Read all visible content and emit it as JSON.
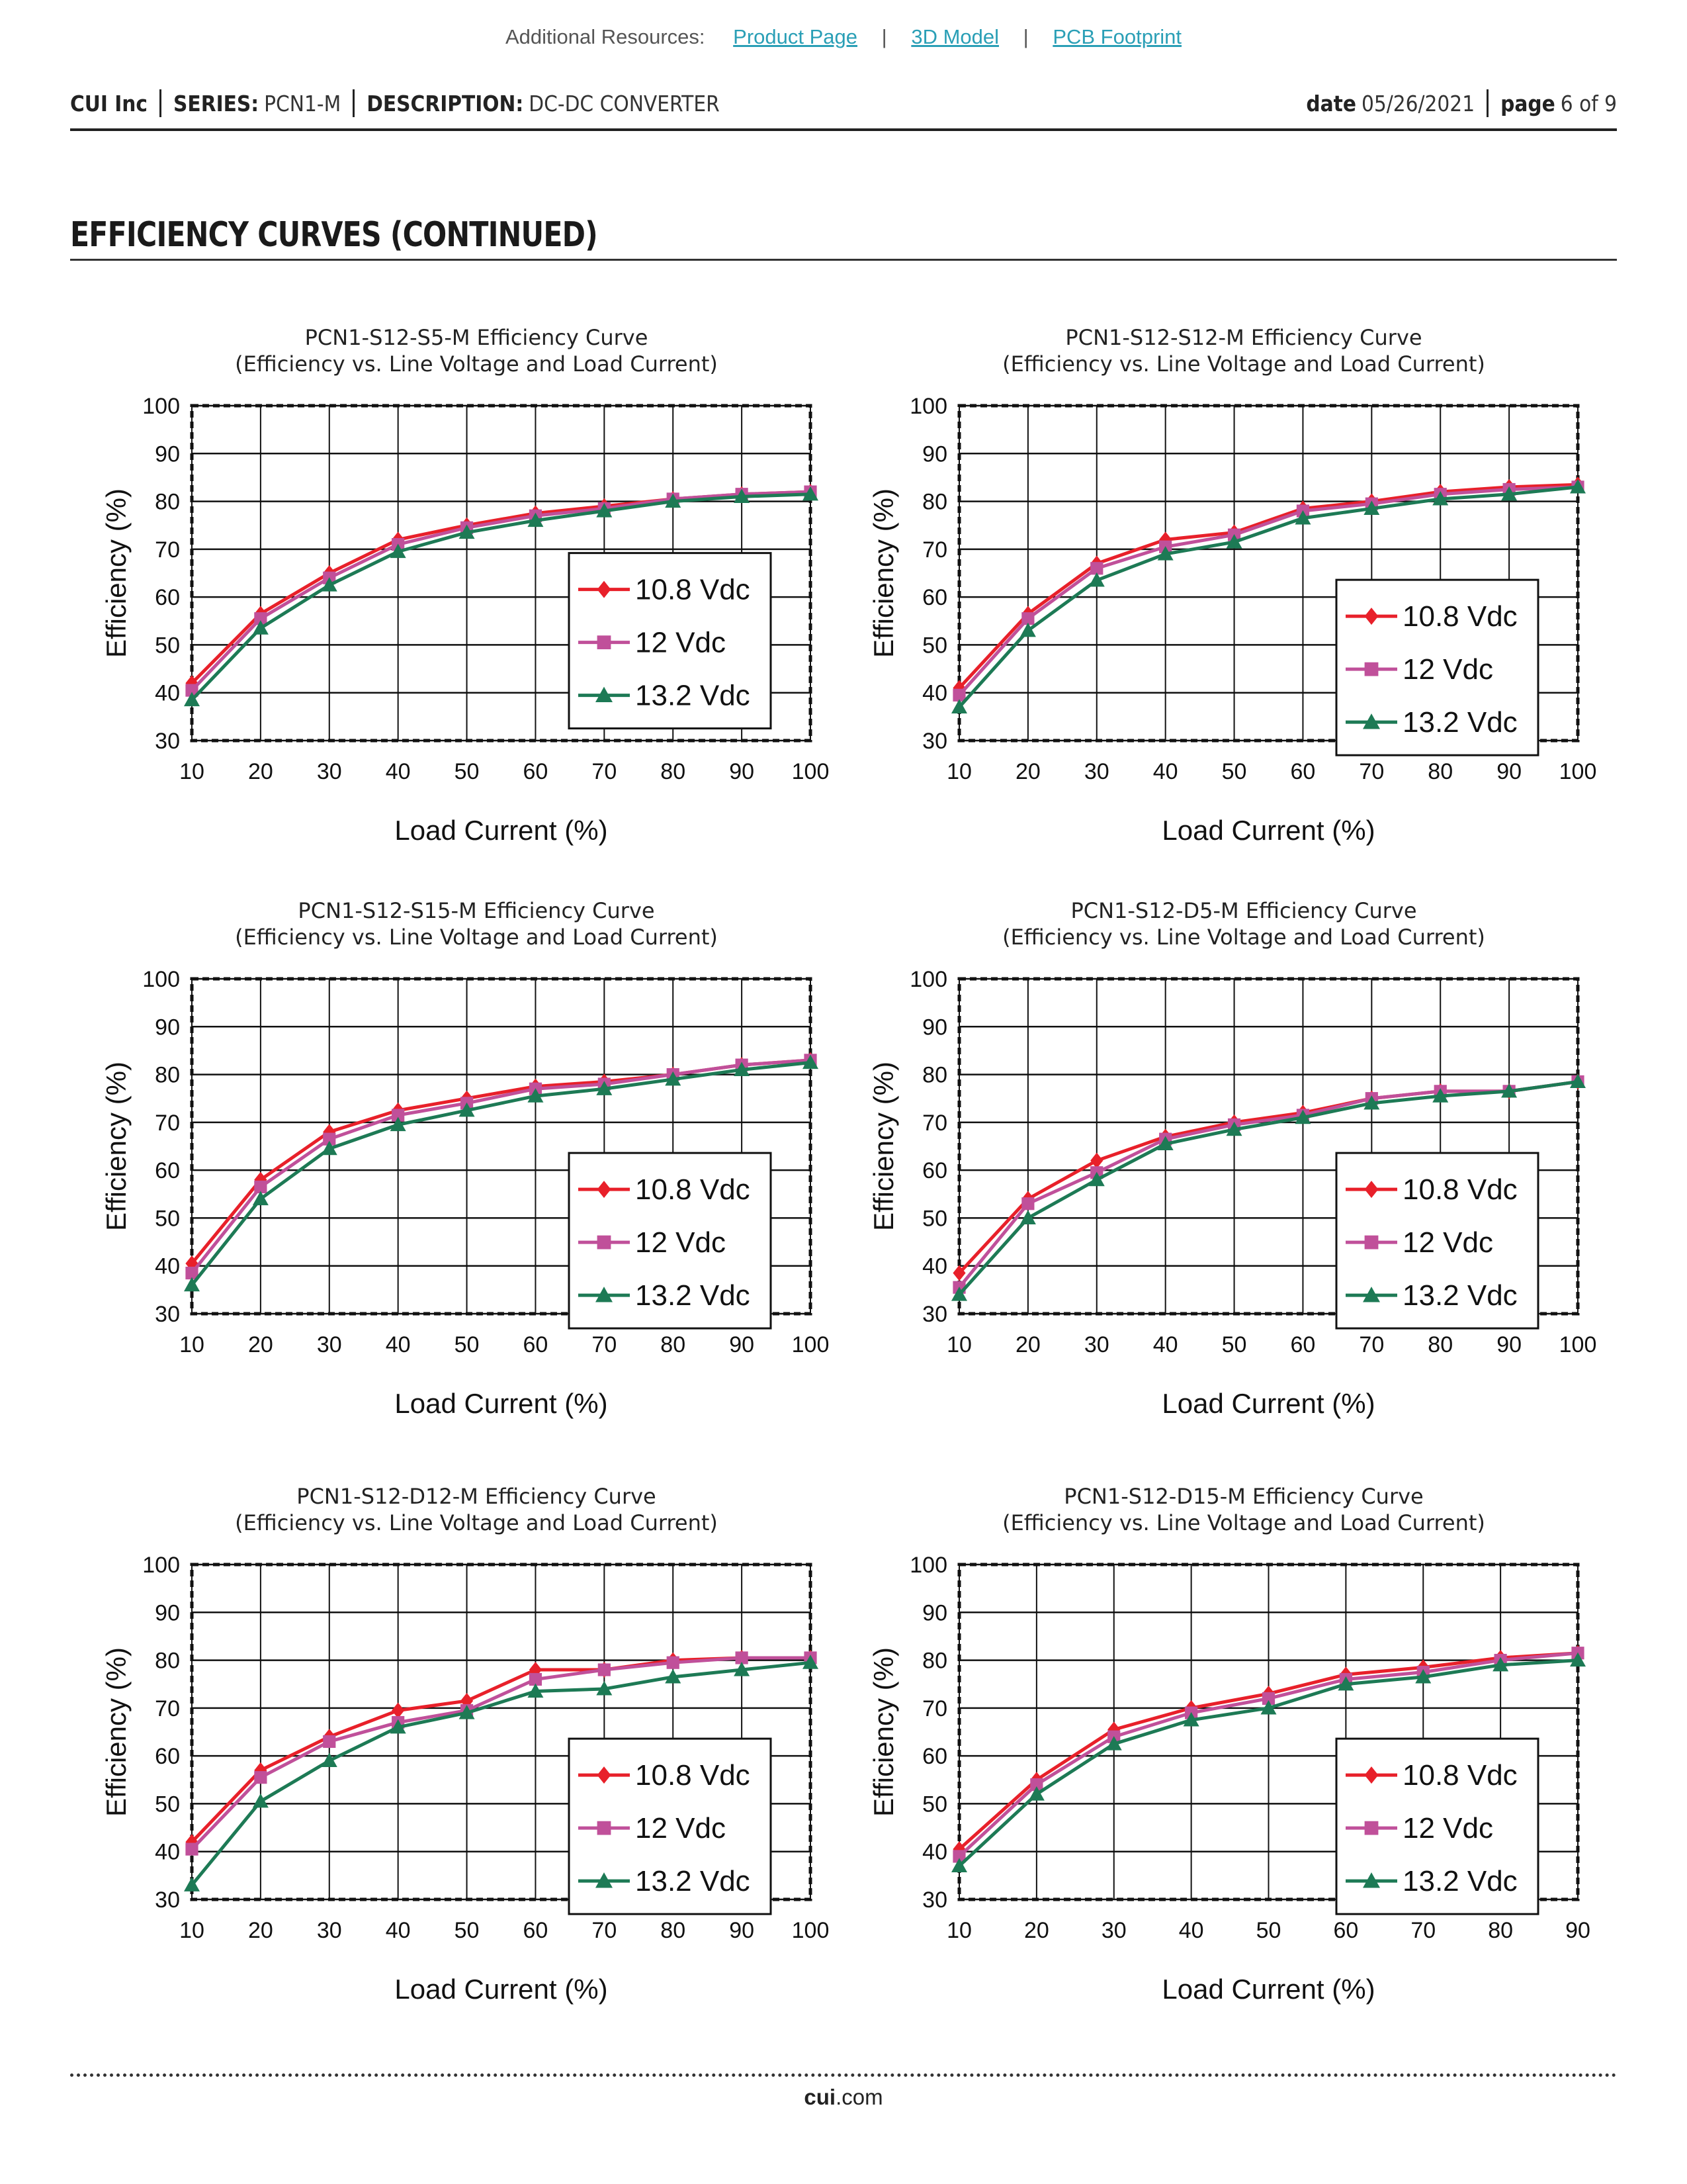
{
  "resources": {
    "label": "Additional Resources:",
    "links": [
      "Product Page",
      "3D Model",
      "PCB Footprint"
    ],
    "separator": "|"
  },
  "header": {
    "company": "CUI Inc",
    "series_label": "SERIES:",
    "series_value": "PCN1-M",
    "description_label": "DESCRIPTION:",
    "description_value": "DC-DC CONVERTER",
    "date_label": "date",
    "date_value": "05/26/2021",
    "page_label": "page",
    "page_value": "6 of 9"
  },
  "section_title": "EFFICIENCY CURVES (CONTINUED)",
  "footer": {
    "domain_bold": "cui",
    "domain_rest": ".com"
  },
  "colors": {
    "10.8 Vdc": "#e8202a",
    "12 Vdc": "#c0509a",
    "13.2 Vdc": "#1d7a55"
  },
  "chart_data": [
    {
      "type": "line",
      "title": "PCN1-S12-S5-M Efficiency Curve",
      "subtitle": "(Efficiency vs. Line Voltage and Load Current)",
      "xlabel": "Load Current (%)",
      "ylabel": "Efficiency (%)",
      "x": [
        10,
        20,
        30,
        40,
        50,
        60,
        70,
        80,
        90,
        100
      ],
      "xlim": [
        10,
        100
      ],
      "ylim": [
        30,
        100
      ],
      "yticks": [
        30,
        40,
        50,
        60,
        70,
        80,
        90,
        100
      ],
      "grid": true,
      "legend": "center-right",
      "series": [
        {
          "name": "10.8 Vdc",
          "marker": "diamond",
          "values": [
            42,
            56.5,
            65,
            72,
            75,
            77.5,
            79,
            80.5,
            81.5,
            82
          ]
        },
        {
          "name": "12 Vdc",
          "marker": "square",
          "values": [
            40.5,
            55.5,
            64,
            71,
            74.5,
            77,
            78.5,
            80.5,
            81.5,
            82
          ]
        },
        {
          "name": "13.2 Vdc",
          "marker": "triangle",
          "values": [
            38.5,
            53.5,
            62.5,
            69.5,
            73.5,
            76,
            78,
            80,
            81,
            81.5
          ]
        }
      ]
    },
    {
      "type": "line",
      "title": "PCN1-S12-S12-M Efficiency Curve",
      "subtitle": "(Efficiency vs. Line Voltage and Load Current)",
      "xlabel": "Load Current (%)",
      "ylabel": "Efficiency (%)",
      "x": [
        10,
        20,
        30,
        40,
        50,
        60,
        70,
        80,
        90,
        100
      ],
      "xlim": [
        10,
        100
      ],
      "ylim": [
        30,
        100
      ],
      "yticks": [
        30,
        40,
        50,
        60,
        70,
        80,
        90,
        100
      ],
      "grid": true,
      "legend": "bottom-right",
      "series": [
        {
          "name": "10.8 Vdc",
          "marker": "diamond",
          "values": [
            41,
            56.5,
            67,
            72,
            73.5,
            78.5,
            80,
            82,
            83,
            83.5
          ]
        },
        {
          "name": "12 Vdc",
          "marker": "square",
          "values": [
            39.5,
            55.5,
            66,
            70.5,
            73,
            78,
            79.5,
            81.5,
            82.5,
            83
          ]
        },
        {
          "name": "13.2 Vdc",
          "marker": "triangle",
          "values": [
            37,
            53,
            63.5,
            69,
            71.5,
            76.5,
            78.5,
            80.5,
            81.5,
            83
          ]
        }
      ]
    },
    {
      "type": "line",
      "title": "PCN1-S12-S15-M Efficiency Curve",
      "subtitle": "(Efficiency vs. Line Voltage and Load Current)",
      "xlabel": "Load Current (%)",
      "ylabel": "Efficiency (%)",
      "x": [
        10,
        20,
        30,
        40,
        50,
        60,
        70,
        80,
        90,
        100
      ],
      "xlim": [
        10,
        100
      ],
      "ylim": [
        30,
        100
      ],
      "yticks": [
        30,
        40,
        50,
        60,
        70,
        80,
        90,
        100
      ],
      "grid": true,
      "legend": "bottom-right",
      "series": [
        {
          "name": "10.8 Vdc",
          "marker": "diamond",
          "values": [
            40.5,
            58,
            68,
            72.5,
            75,
            77.5,
            78.5,
            80,
            82,
            83
          ]
        },
        {
          "name": "12 Vdc",
          "marker": "square",
          "values": [
            38.5,
            56.5,
            66.5,
            71.5,
            74,
            77,
            78,
            80,
            82,
            83
          ]
        },
        {
          "name": "13.2 Vdc",
          "marker": "triangle",
          "values": [
            36,
            54,
            64.5,
            69.5,
            72.5,
            75.5,
            77,
            79,
            81,
            82.5
          ]
        }
      ]
    },
    {
      "type": "line",
      "title": "PCN1-S12-D5-M Efficiency Curve",
      "subtitle": "(Efficiency vs. Line Voltage and Load Current)",
      "xlabel": "Load Current (%)",
      "ylabel": "Efficiency (%)",
      "x": [
        10,
        20,
        30,
        40,
        50,
        60,
        70,
        80,
        90,
        100
      ],
      "xlim": [
        10,
        100
      ],
      "ylim": [
        30,
        100
      ],
      "yticks": [
        30,
        40,
        50,
        60,
        70,
        80,
        90,
        100
      ],
      "grid": true,
      "legend": "bottom-right",
      "series": [
        {
          "name": "10.8 Vdc",
          "marker": "diamond",
          "values": [
            38.5,
            54,
            62,
            67,
            70,
            72,
            75,
            76.5,
            76.5,
            78.5
          ]
        },
        {
          "name": "12 Vdc",
          "marker": "square",
          "values": [
            35.5,
            53,
            59.5,
            66.5,
            69.5,
            71.5,
            75,
            76.5,
            76.5,
            78.5
          ]
        },
        {
          "name": "13.2 Vdc",
          "marker": "triangle",
          "values": [
            34,
            50,
            58,
            65.5,
            68.5,
            71,
            74,
            75.5,
            76.5,
            78.5
          ]
        }
      ]
    },
    {
      "type": "line",
      "title": "PCN1-S12-D12-M Efficiency Curve",
      "subtitle": "(Efficiency vs. Line Voltage and Load Current)",
      "xlabel": "Load Current (%)",
      "ylabel": "Efficiency (%)",
      "x": [
        10,
        20,
        30,
        40,
        50,
        60,
        70,
        80,
        90,
        100
      ],
      "xlim": [
        10,
        100
      ],
      "ylim": [
        30,
        100
      ],
      "yticks": [
        30,
        40,
        50,
        60,
        70,
        80,
        90,
        100
      ],
      "grid": true,
      "legend": "bottom-right",
      "series": [
        {
          "name": "10.8 Vdc",
          "marker": "diamond",
          "values": [
            42,
            57,
            64,
            69.5,
            71.5,
            78,
            78,
            80,
            80.5,
            80.5
          ]
        },
        {
          "name": "12 Vdc",
          "marker": "square",
          "values": [
            40.5,
            55.5,
            63,
            67,
            69.5,
            76,
            78,
            79.5,
            80.5,
            80.5
          ]
        },
        {
          "name": "13.2 Vdc",
          "marker": "triangle",
          "values": [
            33,
            50.5,
            59,
            66,
            69,
            73.5,
            74,
            76.5,
            78,
            79.5
          ]
        }
      ]
    },
    {
      "type": "line",
      "title": "PCN1-S12-D15-M Efficiency Curve",
      "subtitle": "(Efficiency vs. Line Voltage and Load Current)",
      "xlabel": "Load Current (%)",
      "ylabel": "Efficiency (%)",
      "x": [
        10,
        20,
        30,
        40,
        50,
        60,
        70,
        80,
        90
      ],
      "xlim": [
        10,
        90
      ],
      "ylim": [
        30,
        100
      ],
      "yticks": [
        30,
        40,
        50,
        60,
        70,
        80,
        90,
        100
      ],
      "grid": true,
      "legend": "bottom-right",
      "series": [
        {
          "name": "10.8 Vdc",
          "marker": "diamond",
          "values": [
            40.5,
            55,
            65.5,
            70,
            73,
            77,
            78.5,
            80.5,
            81.5
          ]
        },
        {
          "name": "12 Vdc",
          "marker": "square",
          "values": [
            39,
            54,
            64,
            69,
            72,
            76,
            77.5,
            80,
            81.5
          ]
        },
        {
          "name": "13.2 Vdc",
          "marker": "triangle",
          "values": [
            37,
            52,
            62.5,
            67.5,
            70,
            75,
            76.5,
            79,
            80
          ]
        }
      ]
    }
  ]
}
